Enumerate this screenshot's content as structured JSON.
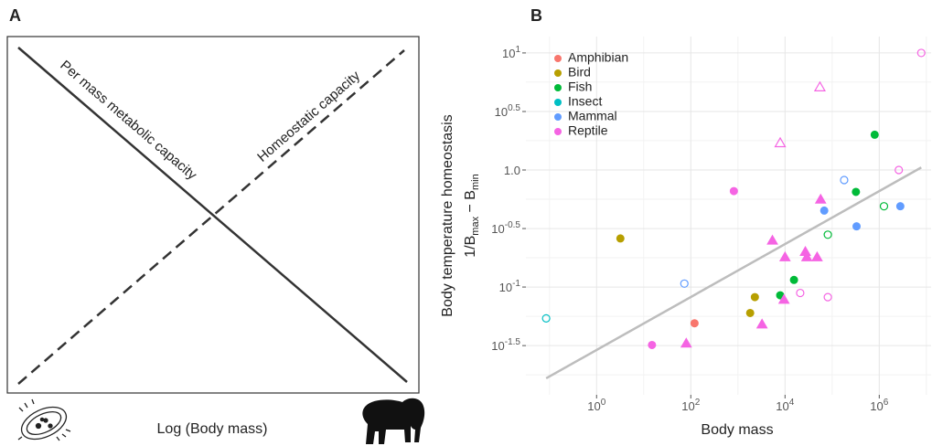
{
  "panel_a": {
    "label": "A",
    "line1": "Per mass metabolic capacity",
    "line2": "Homeostatic capacity",
    "x_label": "Log (Body mass)"
  },
  "chart_data": {
    "type": "scatter",
    "panel_label": "B",
    "log_scale": true,
    "grid": true,
    "legend": "top-left",
    "x_label": "Body mass",
    "y_label": "Body temperature homeostasis",
    "y_label_2": [
      "1/B",
      "max",
      " − B",
      "min"
    ],
    "xlim": [
      0.0316,
      12600000
    ],
    "ylim": [
      0.012,
      13.8
    ],
    "xticks": [
      {
        "value": 1,
        "label": "10",
        "sup": "0"
      },
      {
        "value": 100,
        "label": "10",
        "sup": "2"
      },
      {
        "value": 10000,
        "label": "10",
        "sup": "4"
      },
      {
        "value": 1000000,
        "label": "10",
        "sup": "6"
      }
    ],
    "yticks": [
      {
        "value": 0.0316,
        "label": "10",
        "sup": "-1.5"
      },
      {
        "value": 0.1,
        "label": "10",
        "sup": "-1"
      },
      {
        "value": 0.316,
        "label": "10",
        "sup": "-0.5"
      },
      {
        "value": 1,
        "label": "1.0"
      },
      {
        "value": 3.16,
        "label": "10",
        "sup": "0.5"
      },
      {
        "value": 10,
        "label": "10",
        "sup": "1"
      }
    ],
    "series": [
      {
        "name": "Amphibian",
        "color": "#F8766D",
        "x": [
          120
        ],
        "values": [
          0.049
        ],
        "markers": [
          "circle"
        ]
      },
      {
        "name": "Bird",
        "color": "#B79F00",
        "x": [
          3.2,
          2290,
          1820
        ],
        "values": [
          0.26,
          0.082,
          0.06
        ],
        "markers": [
          "circle",
          "circle",
          "circle"
        ]
      },
      {
        "name": "Fish",
        "color": "#00BA38",
        "x": [
          800000,
          320000,
          15500,
          7900,
          81000,
          1260000
        ],
        "values": [
          2.0,
          0.65,
          0.115,
          0.085,
          0.28,
          0.49
        ],
        "markers": [
          "circle",
          "circle",
          "circle",
          "circle",
          "circle-open",
          "circle-open"
        ]
      },
      {
        "name": "Insect",
        "color": "#00BFC4",
        "x": [
          0.085
        ],
        "values": [
          0.054
        ],
        "markers": [
          "circle-open"
        ]
      },
      {
        "name": "Mammal",
        "color": "#619CFF",
        "x": [
          68000,
          330000,
          2800000,
          73,
          180000
        ],
        "values": [
          0.45,
          0.33,
          0.49,
          0.107,
          0.82
        ],
        "markers": [
          "circle",
          "circle",
          "circle",
          "circle-open",
          "circle-open"
        ]
      },
      {
        "name": "Reptile",
        "color": "#F564E3",
        "x": [
          820,
          15,
          57000,
          5400,
          27000,
          29000,
          48000,
          10000,
          9500,
          3250,
          80,
          7800000,
          2600000,
          21000,
          81000,
          55000,
          7900
        ],
        "values": [
          0.66,
          0.032,
          0.56,
          0.25,
          0.2,
          0.18,
          0.18,
          0.18,
          0.078,
          0.048,
          0.033,
          10,
          1.0,
          0.089,
          0.082,
          5.1,
          1.7
        ],
        "markers": [
          "circle",
          "circle",
          "triangle",
          "triangle",
          "triangle",
          "triangle",
          "triangle",
          "triangle",
          "triangle",
          "triangle",
          "triangle",
          "circle-open",
          "circle-open",
          "circle-open",
          "circle-open",
          "triangle-open",
          "triangle-open"
        ]
      }
    ],
    "trendline": {
      "color": "#bdbdbd",
      "x": [
        0.085,
        7800000
      ],
      "values": [
        0.0166,
        1.05
      ]
    }
  }
}
